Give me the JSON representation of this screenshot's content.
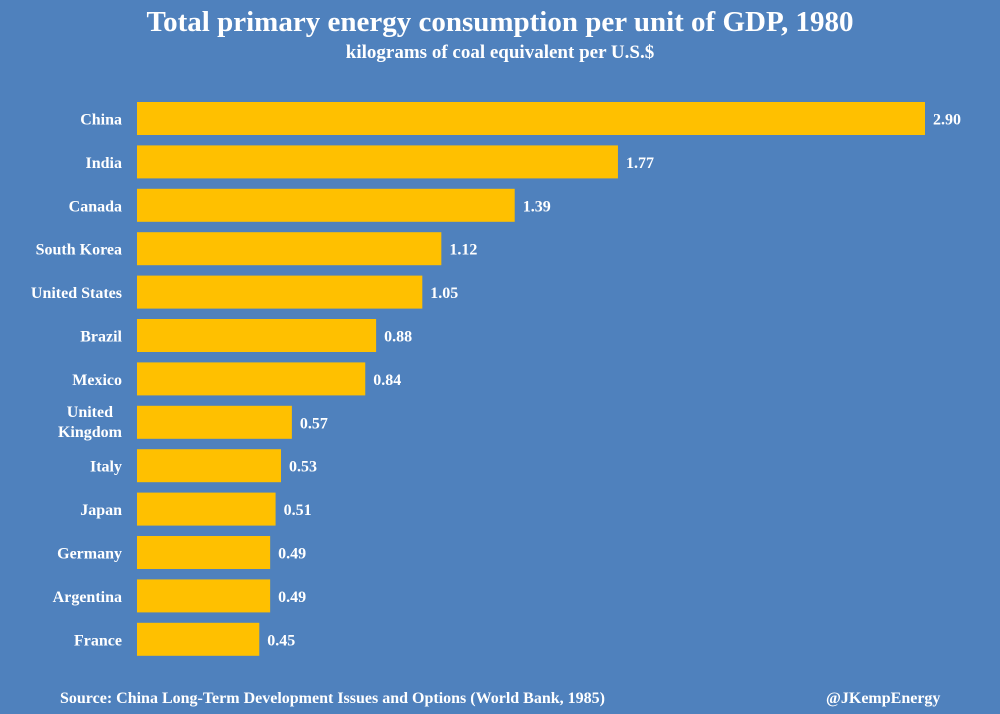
{
  "chart_data": {
    "type": "bar",
    "orientation": "horizontal",
    "title": "Total primary energy consumption per unit of GDP, 1980",
    "subtitle": "kilograms of coal equivalent per U.S.$",
    "categories": [
      "China",
      "India",
      "Canada",
      "South Korea",
      "United States",
      "Brazil",
      "Mexico",
      "United Kingdom",
      "Italy",
      "Japan",
      "Germany",
      "Argentina",
      "France"
    ],
    "values": [
      2.9,
      1.77,
      1.39,
      1.12,
      1.05,
      0.88,
      0.84,
      0.57,
      0.53,
      0.51,
      0.49,
      0.49,
      0.45
    ],
    "value_labels": [
      "2.90",
      "1.77",
      "1.39",
      "1.12",
      "1.05",
      "0.88",
      "0.84",
      "0.57",
      "0.53",
      "0.51",
      "0.49",
      "0.49",
      "0.45"
    ],
    "xlim": [
      0,
      2.9
    ],
    "grid": false,
    "legend": "none",
    "colors": {
      "background": "#4F81BD",
      "bar": "#FFC000",
      "text": "#FFFFFF"
    }
  },
  "footer": {
    "source": "Source: China Long-Term Development Issues and Options (World Bank, 1985)",
    "credit": "@JKempEnergy"
  }
}
